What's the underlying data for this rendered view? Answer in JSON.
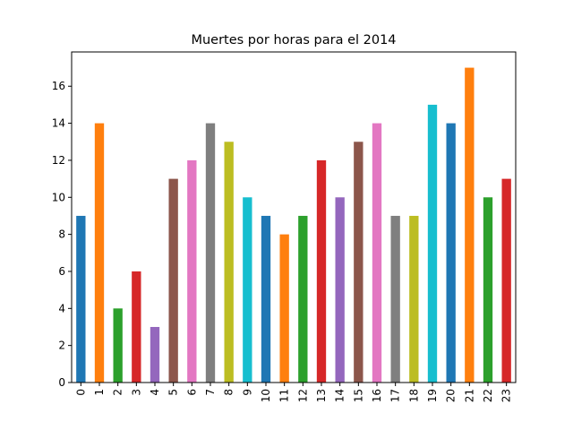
{
  "chart_data": {
    "type": "bar",
    "title": "Muertes por horas para el 2014",
    "xlabel": "",
    "ylabel": "",
    "categories": [
      "0",
      "1",
      "2",
      "3",
      "4",
      "5",
      "6",
      "7",
      "8",
      "9",
      "10",
      "11",
      "12",
      "13",
      "14",
      "15",
      "16",
      "17",
      "18",
      "19",
      "20",
      "21",
      "22",
      "23"
    ],
    "values": [
      9,
      14,
      4,
      6,
      3,
      11,
      12,
      14,
      13,
      10,
      9,
      8,
      9,
      12,
      10,
      13,
      14,
      9,
      9,
      15,
      14,
      17,
      10,
      11
    ],
    "ylim": [
      0,
      17.85
    ],
    "yticks": [
      0,
      2,
      4,
      6,
      8,
      10,
      12,
      14,
      16
    ],
    "grid": false,
    "legend": "none",
    "colors": [
      "#1f77b4",
      "#ff7f0e",
      "#2ca02c",
      "#d62728",
      "#9467bd",
      "#8c564b",
      "#e377c2",
      "#7f7f7f",
      "#bcbd22",
      "#17becf"
    ]
  }
}
